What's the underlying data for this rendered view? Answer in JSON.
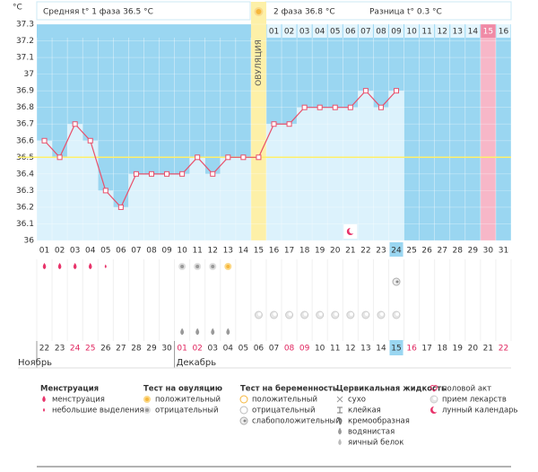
{
  "header": {
    "phase1": "Средняя t° 1 фаза 36.5 °C",
    "phase2": "2 фаза 36.8 °C",
    "diff": "Разница t° 0.3 °C"
  },
  "chart_data": {
    "type": "line",
    "y_unit": "°C",
    "ovulation_label": "ОВУЛЯЦИЯ",
    "categories": [
      "01",
      "02",
      "03",
      "04",
      "05",
      "06",
      "07",
      "08",
      "09",
      "10",
      "11",
      "12",
      "13",
      "14",
      "15",
      "16",
      "17",
      "18",
      "19",
      "20",
      "21",
      "22",
      "23",
      "24",
      "25",
      "26",
      "27",
      "28",
      "29",
      "30",
      "31"
    ],
    "values": [
      36.6,
      36.5,
      36.7,
      36.6,
      36.3,
      36.2,
      36.4,
      36.4,
      36.4,
      36.4,
      36.5,
      36.4,
      36.5,
      36.5,
      36.5,
      36.7,
      36.7,
      36.8,
      36.8,
      36.8,
      36.8,
      36.9,
      36.8,
      36.9,
      null,
      null,
      null,
      null,
      null,
      null,
      null
    ],
    "color": "#e8506b",
    "cover_line": 36.5,
    "ovulation_index": 14,
    "pink_index": 29,
    "highlight_index": 23,
    "luteal_days": [
      "01",
      "02",
      "03",
      "04",
      "05",
      "06",
      "07",
      "08",
      "09",
      "10",
      "11",
      "12",
      "13",
      "14",
      "15",
      "16"
    ],
    "dates": [
      "22",
      "23",
      "24",
      "25",
      "26",
      "27",
      "28",
      "29",
      "30",
      "01",
      "02",
      "03",
      "04",
      "05",
      "06",
      "07",
      "08",
      "09",
      "10",
      "11",
      "12",
      "13",
      "14",
      "15",
      "16",
      "17",
      "18",
      "19",
      "20",
      "21",
      "22"
    ],
    "date_red": [
      2,
      3,
      9,
      10,
      16,
      17,
      24,
      30
    ],
    "months": [
      "Ноябрь",
      null,
      null,
      null,
      null,
      null,
      null,
      null,
      null,
      "Декабрь",
      null,
      null,
      null,
      null,
      null,
      null,
      null,
      null,
      null,
      null,
      null,
      null,
      null,
      null,
      null,
      null,
      null,
      null,
      null,
      null,
      null
    ],
    "ylim": [
      36,
      37.3
    ],
    "yticks": [
      36,
      36.1,
      36.2,
      36.3,
      36.4,
      36.5,
      36.6,
      36.7,
      36.8,
      36.9,
      37,
      37.1,
      37.2,
      37.3
    ],
    "grid": true
  },
  "legend": [
    {
      "title": "Менструация",
      "items": [
        {
          "label": "менструация",
          "icon": "drop",
          "days": [
            1,
            2,
            3,
            4
          ]
        },
        {
          "label": "небольшие выделения",
          "icon": "smalldrop",
          "days": [
            5
          ]
        }
      ]
    },
    {
      "title": "Тест на овуляцию",
      "items": [
        {
          "label": "положительный",
          "icon": "ovpos",
          "days": [
            13
          ]
        },
        {
          "label": "отрицательный",
          "icon": "ovneg",
          "days": [
            10,
            11,
            12
          ]
        }
      ]
    },
    {
      "title": "Тест на беременность",
      "items": [
        {
          "label": "положительный",
          "icon": "pregpos"
        },
        {
          "label": "отрицательный",
          "icon": "pregneg"
        },
        {
          "label": "слабоположительный",
          "icon": "pregweak",
          "days": [
            24
          ]
        }
      ]
    },
    {
      "title": "Цервикальная жидкость",
      "items": [
        {
          "label": "сухо",
          "icon": "x"
        },
        {
          "label": "клейкая",
          "icon": "sticky"
        },
        {
          "label": "кремообразная",
          "icon": "cream"
        },
        {
          "label": "водянистая",
          "icon": "water",
          "days": [
            10,
            11,
            12,
            13
          ]
        },
        {
          "label": "яичный белок",
          "icon": "egg"
        }
      ]
    },
    {
      "items": [
        {
          "label": "половой акт",
          "icon": "heart"
        },
        {
          "label": "прием лекарств",
          "icon": "pill",
          "days": [
            15,
            16,
            17,
            18,
            19,
            20,
            21,
            22,
            23,
            24
          ]
        },
        {
          "label": "лунный календарь",
          "icon": "moon",
          "days": [
            21
          ]
        }
      ]
    }
  ]
}
